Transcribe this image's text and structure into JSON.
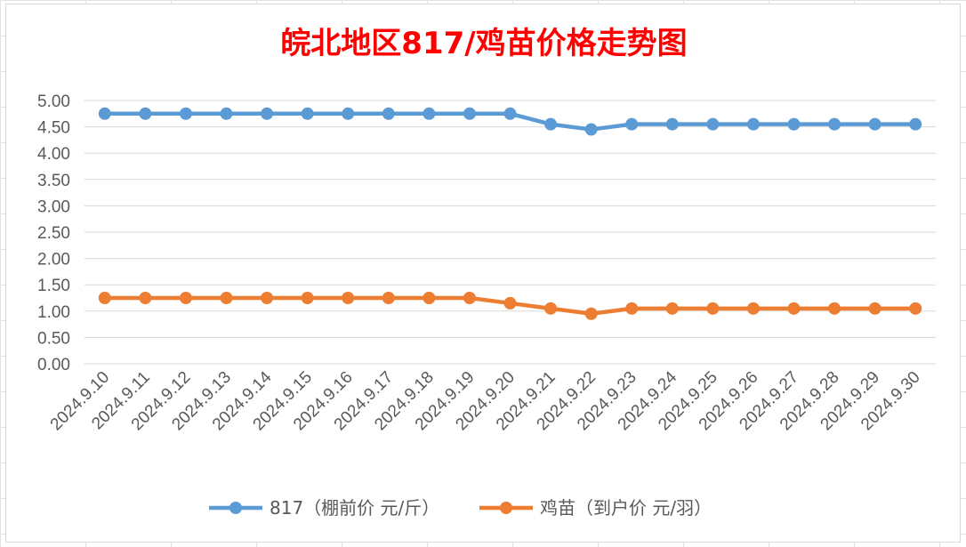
{
  "chart_data": {
    "type": "line",
    "title": "皖北地区817/鸡苗价格走势图",
    "categories": [
      "2024.9.10",
      "2024.9.11",
      "2024.9.12",
      "2024.9.13",
      "2024.9.14",
      "2024.9.15",
      "2024.9.16",
      "2024.9.17",
      "2024.9.18",
      "2024.9.19",
      "2024.9.20",
      "2024.9.21",
      "2024.9.22",
      "2024.9.23",
      "2024.9.24",
      "2024.9.25",
      "2024.9.26",
      "2024.9.27",
      "2024.9.28",
      "2024.9.29",
      "2024.9.30"
    ],
    "series": [
      {
        "name": "817（棚前价 元/斤）",
        "color": "#5b9bd5",
        "values": [
          4.75,
          4.75,
          4.75,
          4.75,
          4.75,
          4.75,
          4.75,
          4.75,
          4.75,
          4.75,
          4.75,
          4.55,
          4.45,
          4.55,
          4.55,
          4.55,
          4.55,
          4.55,
          4.55,
          4.55,
          4.55
        ]
      },
      {
        "name": "鸡苗（到户价 元/羽）",
        "color": "#ed7d31",
        "values": [
          1.25,
          1.25,
          1.25,
          1.25,
          1.25,
          1.25,
          1.25,
          1.25,
          1.25,
          1.25,
          1.15,
          1.05,
          0.95,
          1.05,
          1.05,
          1.05,
          1.05,
          1.05,
          1.05,
          1.05,
          1.05
        ]
      }
    ],
    "ylim": [
      0,
      5
    ],
    "yticks": [
      "0.00",
      "0.50",
      "1.00",
      "1.50",
      "2.00",
      "2.50",
      "3.00",
      "3.50",
      "4.00",
      "4.50",
      "5.00"
    ],
    "grid": true,
    "legend": "bottom",
    "title_color": "#ff0000"
  }
}
